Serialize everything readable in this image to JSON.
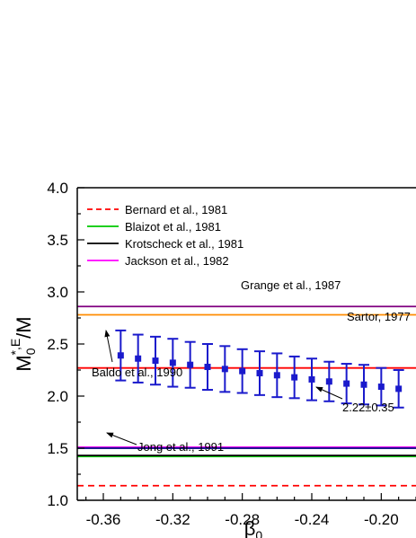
{
  "chart_data": {
    "type": "scatter",
    "xlabel": "β",
    "xlabel_sub": "0",
    "ylabel": "M",
    "ylabel_sub": "0",
    "ylabel_sup": "*,E",
    "ylabel_tail": "/M",
    "xlim": [
      -0.375,
      -0.18
    ],
    "ylim": [
      1.0,
      4.0
    ],
    "x_ticks": [
      -0.36,
      -0.32,
      -0.28,
      -0.24,
      -0.2
    ],
    "x_tick_labels": [
      "-0.36",
      "-0.32",
      "-0.28",
      "-0.24",
      "-0.20"
    ],
    "y_ticks": [
      1.0,
      1.5,
      2.0,
      2.5,
      3.0,
      3.5,
      4.0
    ],
    "y_tick_labels": [
      "1.0",
      "1.5",
      "2.0",
      "2.5",
      "3.0",
      "3.5",
      "4.0"
    ],
    "grid": false,
    "legend_position": "top-left",
    "series": [
      {
        "marker": "square",
        "color": "#1a1acc",
        "x": [
          -0.35,
          -0.34,
          -0.33,
          -0.32,
          -0.31,
          -0.3,
          -0.29,
          -0.28,
          -0.27,
          -0.26,
          -0.25,
          -0.24,
          -0.23,
          -0.22,
          -0.21,
          -0.2,
          -0.19
        ],
        "y": [
          2.39,
          2.36,
          2.34,
          2.32,
          2.3,
          2.28,
          2.26,
          2.24,
          2.22,
          2.2,
          2.18,
          2.16,
          2.14,
          2.12,
          2.11,
          2.09,
          2.07
        ],
        "yerr": [
          0.24,
          0.23,
          0.23,
          0.23,
          0.22,
          0.22,
          0.22,
          0.21,
          0.21,
          0.21,
          0.2,
          0.2,
          0.19,
          0.19,
          0.19,
          0.18,
          0.18
        ]
      }
    ],
    "hlines": [
      {
        "y": 1.14,
        "color": "#ff0000",
        "style": "dashed",
        "label": "Bernard et al., 1981"
      },
      {
        "y": 1.42,
        "color": "#00c800",
        "style": "solid",
        "label": "Blaizot et al., 1981"
      },
      {
        "y": 1.43,
        "color": "#000000",
        "style": "solid",
        "label": "Krotscheck et al., 1981"
      },
      {
        "y": 1.51,
        "color": "#ff00ff",
        "style": "solid",
        "label": "Jackson et al., 1982"
      },
      {
        "y": 1.5,
        "color": "#000080",
        "style": "solid",
        "label": ""
      },
      {
        "y": 2.27,
        "color": "#ff0000",
        "style": "solid",
        "label": ""
      },
      {
        "y": 2.78,
        "color": "#ff8c00",
        "style": "solid",
        "label": ""
      },
      {
        "y": 2.86,
        "color": "#800080",
        "style": "solid",
        "label": ""
      }
    ],
    "annotations": [
      {
        "text": "Grange et al., 1987"
      },
      {
        "text": "Sartor, 1977"
      },
      {
        "text": "Baldo et al., 1990"
      },
      {
        "text": "2.22±0.35"
      },
      {
        "text": "Jong et al., 1991"
      }
    ]
  }
}
